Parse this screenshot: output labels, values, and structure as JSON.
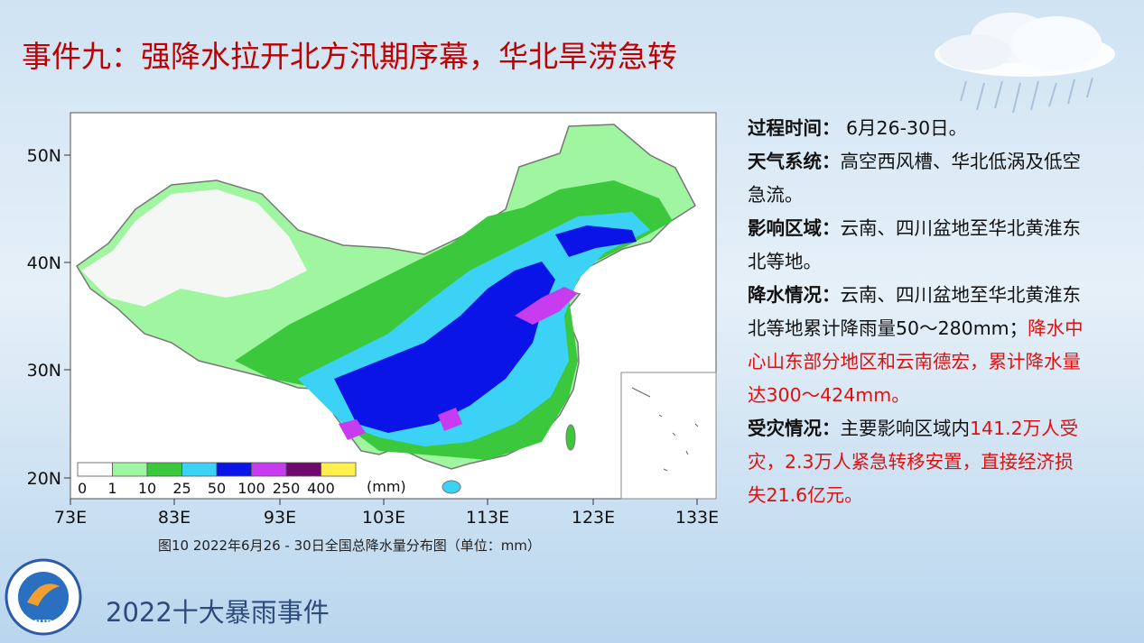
{
  "header": {
    "title": "事件九：强降水拉开北方汛期序幕，华北旱涝急转"
  },
  "map": {
    "lat_labels": [
      "50N",
      "40N",
      "30N",
      "20N"
    ],
    "lon_labels": [
      "73E",
      "83E",
      "93E",
      "103E",
      "113E",
      "123E",
      "133E"
    ],
    "legend": {
      "ticks": [
        "0",
        "1",
        "10",
        "25",
        "50",
        "100",
        "250",
        "400"
      ],
      "unit": "(mm)",
      "colors": [
        "#ffffff",
        "#a0f5a0",
        "#3cc83c",
        "#3cd2f5",
        "#0a14e6",
        "#c83cf0",
        "#6e0a6e",
        "#fff050"
      ]
    },
    "caption": "图10  2022年6月26 - 30日全国总降水量分布图（单位：mm）"
  },
  "sections": [
    {
      "label": "过程时间：",
      "parts": [
        {
          "text": " 6月26-30日。",
          "highlight": false
        }
      ]
    },
    {
      "label": "天气系统：",
      "parts": [
        {
          "text": "高空西风槽、华北低涡及低空急流。",
          "highlight": false
        }
      ]
    },
    {
      "label": "影响区域：",
      "parts": [
        {
          "text": "云南、四川盆地至华北黄淮东北等地。",
          "highlight": false
        }
      ]
    },
    {
      "label": "降水情况：",
      "parts": [
        {
          "text": "云南、四川盆地至华北黄淮东北等地累计降雨量50～280mm；",
          "highlight": false
        },
        {
          "text": "降水中心山东部分地区和云南德宏，累计降水量达300～424mm。",
          "highlight": true
        }
      ]
    },
    {
      "label": "受灾情况：",
      "parts": [
        {
          "text": "主要影响区域内",
          "highlight": false
        },
        {
          "text": "141.2万人受灾，2.3万人紧急转移安置，直接经济损失21.6亿元。",
          "highlight": true
        }
      ]
    }
  ],
  "footer": {
    "text": "2022十大暴雨事件",
    "logo": "IHR"
  }
}
